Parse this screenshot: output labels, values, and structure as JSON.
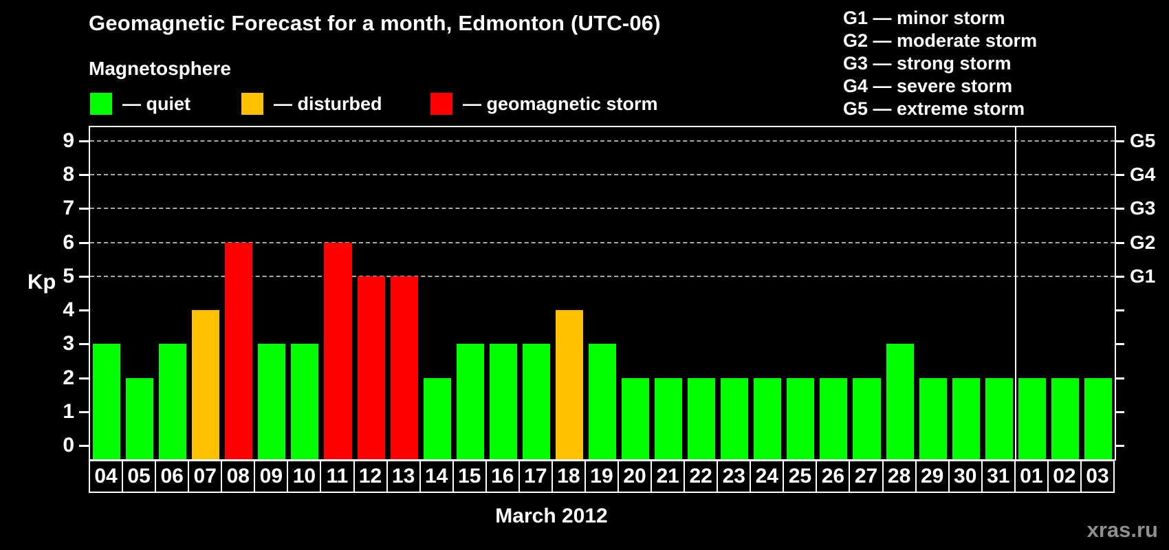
{
  "header": {
    "title": "Geomagnetic Forecast for a month, Edmonton (UTC-06)",
    "subtitle": "Magnetosphere"
  },
  "legend": {
    "items": [
      {
        "name": "quiet",
        "label": "— quiet",
        "color": "#00ff00"
      },
      {
        "name": "disturbed",
        "label": "— disturbed",
        "color": "#ffc000"
      },
      {
        "name": "geomagnetic-storm",
        "label": "— geomagnetic storm",
        "color": "#ff0000"
      }
    ]
  },
  "storm_scale": {
    "items": [
      {
        "label": "G1 — minor storm"
      },
      {
        "label": "G2 — moderate storm"
      },
      {
        "label": "G3 — strong storm"
      },
      {
        "label": "G4 — severe storm"
      },
      {
        "label": "G5 — extreme storm"
      }
    ]
  },
  "watermark": "xras.ru",
  "chart_data": {
    "type": "bar",
    "title": "Geomagnetic Forecast for a month, Edmonton (UTC-06)",
    "xlabel": "March 2012",
    "ylabel": "Kp",
    "ylim": [
      0,
      9
    ],
    "yticks": [
      0,
      1,
      2,
      3,
      4,
      5,
      6,
      7,
      8,
      9
    ],
    "gridlines_at_kp": [
      5,
      6,
      7,
      8,
      9
    ],
    "grid": "dashed horizontal lines at Kp 5–9 only",
    "legend_position": "top-left",
    "right_axis": [
      {
        "kp": 5,
        "label": "G1"
      },
      {
        "kp": 6,
        "label": "G2"
      },
      {
        "kp": 7,
        "label": "G3"
      },
      {
        "kp": 8,
        "label": "G4"
      },
      {
        "kp": 9,
        "label": "G5"
      }
    ],
    "categories": [
      "04",
      "05",
      "06",
      "07",
      "08",
      "09",
      "10",
      "11",
      "12",
      "13",
      "14",
      "15",
      "16",
      "17",
      "18",
      "19",
      "20",
      "21",
      "22",
      "23",
      "24",
      "25",
      "26",
      "27",
      "28",
      "29",
      "30",
      "31",
      "01",
      "02",
      "03"
    ],
    "values": [
      3,
      2,
      3,
      4,
      6,
      3,
      3,
      6,
      5,
      5,
      2,
      3,
      3,
      3,
      4,
      3,
      2,
      2,
      2,
      2,
      2,
      2,
      2,
      2,
      3,
      2,
      2,
      2,
      2,
      2,
      2
    ],
    "statuses": [
      "quiet",
      "quiet",
      "quiet",
      "disturbed",
      "storm",
      "quiet",
      "quiet",
      "storm",
      "storm",
      "storm",
      "quiet",
      "quiet",
      "quiet",
      "quiet",
      "disturbed",
      "quiet",
      "quiet",
      "quiet",
      "quiet",
      "quiet",
      "quiet",
      "quiet",
      "quiet",
      "quiet",
      "quiet",
      "quiet",
      "quiet",
      "quiet",
      "quiet",
      "quiet",
      "quiet"
    ],
    "status_colors": {
      "quiet": "#00ff00",
      "disturbed": "#ffc000",
      "storm": "#ff0000"
    },
    "month_divider_after_index": 27
  }
}
